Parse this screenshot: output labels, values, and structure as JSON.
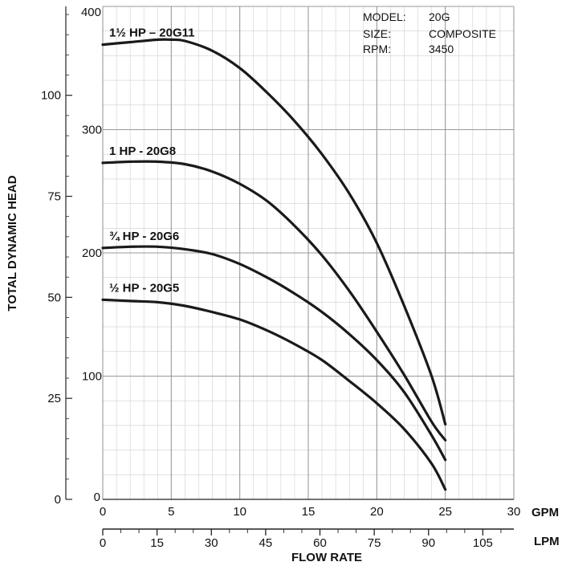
{
  "chart_data": {
    "type": "line",
    "xlabel": "FLOW RATE",
    "ylabel": "TOTAL DYNAMIC HEAD",
    "x_unit_primary": "GPM",
    "x_unit_secondary": "LPM",
    "xlim": [
      0,
      30
    ],
    "ylim_feet": [
      0,
      400
    ],
    "ylim_meters": [
      0,
      122
    ],
    "x_ticks_gpm": [
      "0",
      "5",
      "10",
      "15",
      "20",
      "25",
      "30"
    ],
    "x_ticks_lpm": [
      "0",
      "15",
      "30",
      "45",
      "60",
      "75",
      "90",
      "105"
    ],
    "y_ticks_feet": [
      "0",
      "100",
      "200",
      "300",
      "400"
    ],
    "y_ticks_meters": [
      "0",
      "25",
      "50",
      "75",
      "100"
    ],
    "grid": true,
    "info": {
      "model_label": "MODEL:",
      "model_value": "20G",
      "size_label": "SIZE:",
      "size_value": "COMPOSITE",
      "rpm_label": "RPM:",
      "rpm_value": "3450"
    },
    "series": [
      {
        "name": "1½ HP – 20G11",
        "x": [
          0,
          2,
          4,
          5,
          6,
          8,
          10,
          12,
          14,
          16,
          18,
          20,
          22,
          24,
          25
        ],
        "y": [
          369,
          371,
          373,
          373,
          372,
          364,
          350,
          330,
          307,
          280,
          248,
          208,
          157,
          100,
          61
        ]
      },
      {
        "name": "1 HP - 20G8",
        "x": [
          0,
          2,
          4,
          6,
          8,
          10,
          12,
          14,
          16,
          18,
          20,
          22,
          24,
          25
        ],
        "y": [
          273,
          274,
          274,
          272,
          266,
          256,
          242,
          222,
          198,
          169,
          136,
          101,
          63,
          48
        ]
      },
      {
        "name": "¾ HP - 20G6",
        "x": [
          0,
          2,
          4,
          6,
          8,
          10,
          12,
          14,
          16,
          18,
          20,
          22,
          24,
          25
        ],
        "y": [
          204,
          205,
          205,
          203,
          199,
          191,
          180,
          167,
          152,
          134,
          113,
          87,
          52,
          32
        ]
      },
      {
        "name": "½ HP - 20G5",
        "x": [
          0,
          2,
          4,
          6,
          8,
          10,
          12,
          14,
          16,
          18,
          20,
          22,
          24,
          25
        ],
        "y": [
          162,
          161,
          160,
          157,
          152,
          146,
          137,
          126,
          113,
          96,
          78,
          57,
          29,
          8
        ]
      }
    ]
  }
}
